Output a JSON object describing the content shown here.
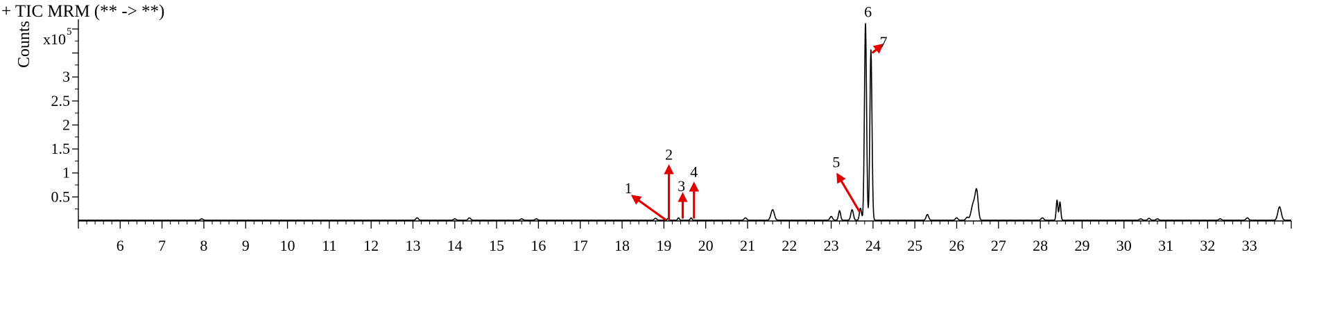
{
  "chart_data": {
    "type": "line",
    "title": "+ TIC MRM (** -> **)",
    "ylabel": "Counts",
    "y_multiplier_base": "x10",
    "y_multiplier_exp": "5",
    "xlim": [
      5.0,
      34.0
    ],
    "ylim": [
      0,
      4.2
    ],
    "xticks": [
      6,
      7,
      8,
      9,
      10,
      11,
      12,
      13,
      14,
      15,
      16,
      17,
      18,
      19,
      20,
      21,
      22,
      23,
      24,
      25,
      26,
      27,
      28,
      29,
      30,
      31,
      32,
      33
    ],
    "yticks": [
      0.5,
      1,
      1.5,
      2,
      2.5,
      3
    ],
    "ytick_labels": [
      "0.5",
      "1",
      "1.5",
      "2",
      "2.5",
      "3"
    ],
    "baseline": 0.015,
    "peaks": [
      {
        "x": 7.95,
        "y": 0.03,
        "w": 0.03
      },
      {
        "x": 13.1,
        "y": 0.05,
        "w": 0.03
      },
      {
        "x": 14.0,
        "y": 0.03,
        "w": 0.03
      },
      {
        "x": 14.35,
        "y": 0.05,
        "w": 0.03
      },
      {
        "x": 15.6,
        "y": 0.03,
        "w": 0.03
      },
      {
        "x": 15.95,
        "y": 0.03,
        "w": 0.03
      },
      {
        "x": 18.8,
        "y": 0.04,
        "w": 0.03
      },
      {
        "x": 19.1,
        "y": 0.04,
        "w": 0.02
      },
      {
        "x": 19.35,
        "y": 0.05,
        "w": 0.02
      },
      {
        "x": 19.65,
        "y": 0.05,
        "w": 0.02
      },
      {
        "x": 20.95,
        "y": 0.05,
        "w": 0.03
      },
      {
        "x": 21.6,
        "y": 0.22,
        "w": 0.04
      },
      {
        "x": 23.0,
        "y": 0.08,
        "w": 0.03
      },
      {
        "x": 23.2,
        "y": 0.2,
        "w": 0.025
      },
      {
        "x": 23.5,
        "y": 0.22,
        "w": 0.03
      },
      {
        "x": 23.7,
        "y": 0.25,
        "w": 0.025
      },
      {
        "x": 23.82,
        "y": 4.1,
        "w": 0.025
      },
      {
        "x": 23.95,
        "y": 3.55,
        "w": 0.025
      },
      {
        "x": 25.3,
        "y": 0.12,
        "w": 0.03
      },
      {
        "x": 26.0,
        "y": 0.05,
        "w": 0.03
      },
      {
        "x": 26.25,
        "y": 0.06,
        "w": 0.03
      },
      {
        "x": 26.4,
        "y": 0.35,
        "w": 0.05
      },
      {
        "x": 26.48,
        "y": 0.55,
        "w": 0.035
      },
      {
        "x": 28.05,
        "y": 0.05,
        "w": 0.03
      },
      {
        "x": 28.4,
        "y": 0.42,
        "w": 0.02
      },
      {
        "x": 28.47,
        "y": 0.38,
        "w": 0.02
      },
      {
        "x": 30.4,
        "y": 0.03,
        "w": 0.03
      },
      {
        "x": 30.6,
        "y": 0.04,
        "w": 0.03
      },
      {
        "x": 30.8,
        "y": 0.03,
        "w": 0.03
      },
      {
        "x": 32.3,
        "y": 0.03,
        "w": 0.03
      },
      {
        "x": 32.95,
        "y": 0.05,
        "w": 0.03
      },
      {
        "x": 33.72,
        "y": 0.28,
        "w": 0.04
      }
    ],
    "annotations": [
      {
        "label": "1",
        "label_x": 18.15,
        "label_y": 0.58,
        "arrow_from": [
          19.05,
          0.02
        ],
        "arrow_to": [
          18.25,
          0.52
        ]
      },
      {
        "label": "2",
        "label_x": 19.12,
        "label_y": 1.28,
        "arrow_from": [
          19.12,
          0.02
        ],
        "arrow_to": [
          19.12,
          1.14
        ]
      },
      {
        "label": "3",
        "label_x": 19.42,
        "label_y": 0.62,
        "arrow_from": [
          19.45,
          0.05
        ],
        "arrow_to": [
          19.45,
          0.56
        ]
      },
      {
        "label": "4",
        "label_x": 19.72,
        "label_y": 0.92,
        "arrow_from": [
          19.72,
          0.05
        ],
        "arrow_to": [
          19.72,
          0.78
        ]
      },
      {
        "label": "5",
        "label_x": 23.12,
        "label_y": 1.12,
        "arrow_from": [
          23.68,
          0.19
        ],
        "arrow_to": [
          23.15,
          0.97
        ]
      },
      {
        "label": "6",
        "label_x": 23.88,
        "label_y": 4.25,
        "arrow_from": null,
        "arrow_to": null
      },
      {
        "label": "7",
        "label_x": 24.25,
        "label_y": 3.62,
        "arrow_from": [
          23.98,
          3.5
        ],
        "arrow_to": [
          24.22,
          3.67
        ]
      }
    ],
    "line_color": "#000000",
    "arrow_color": "#e00000",
    "grid": false,
    "legend": "none"
  }
}
